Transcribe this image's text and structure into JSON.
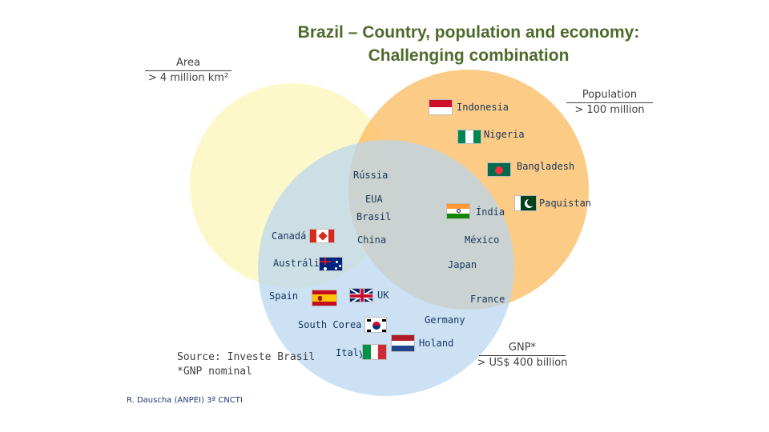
{
  "title_line1": "Brazil – Country, population and economy:",
  "title_line2": "Challenging combination",
  "sets": {
    "area": {
      "name": "Area",
      "threshold": "> 4 million km²",
      "color": "#fdf7c3"
    },
    "population": {
      "name": "Population",
      "threshold": "> 100 million",
      "color": "#fcc77d"
    },
    "gnp": {
      "name": "GNP*",
      "threshold": "> US$ 400 billion",
      "color": "#c4ddf2"
    }
  },
  "countries": {
    "indonesia": "Indonesia",
    "nigeria": "Nigeria",
    "bangladesh": "Bangladesh",
    "russia": "Rússia",
    "eua": "EUA",
    "brasil": "Brasil",
    "india": "Índia",
    "pakistan": "Paquistan",
    "canada": "Canadá",
    "china": "China",
    "mexico": "México",
    "australia": "Austrália",
    "japan": "Japan",
    "spain": "Spain",
    "uk": "UK",
    "france": "France",
    "south_korea": "South Corea",
    "germany": "Germany",
    "italy": "Italy",
    "holland": "Holand"
  },
  "source_line1": "Source: Investe Brasil",
  "source_line2": "*GNP nominal",
  "credit": "R. Dauscha (ANPEI) 3ª CNCTI"
}
